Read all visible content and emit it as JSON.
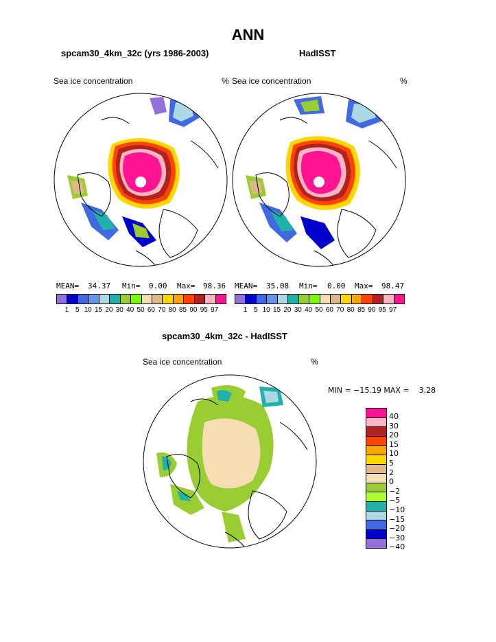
{
  "title": "ANN",
  "panels": [
    {
      "title": "spcam30_4km_32c (yrs 1986-2003)",
      "variable": "Sea ice concentration",
      "units": "%",
      "mean_label": "MEAN=",
      "mean": "34.37",
      "min_label": "Min=",
      "min": "0.00",
      "max_label": "Max=",
      "max": "98.36"
    },
    {
      "title": "HadISST",
      "variable": "Sea ice concentration",
      "units": "%",
      "mean_label": "MEAN=",
      "mean": "35.08",
      "min_label": "Min=",
      "min": "0.00",
      "max_label": "Max=",
      "max": "98.47"
    }
  ],
  "abs_colorbar": {
    "ticks": [
      "1",
      "5",
      "10",
      "15",
      "20",
      "30",
      "40",
      "50",
      "60",
      "70",
      "80",
      "85",
      "90",
      "95",
      "97"
    ],
    "colors": [
      "#9370db",
      "#0000cd",
      "#4169e1",
      "#6495ed",
      "#add8e6",
      "#20b2aa",
      "#9acd32",
      "#7cfc00",
      "#f5deb3",
      "#deb887",
      "#ffd700",
      "#ffa500",
      "#ff4500",
      "#b22222",
      "#ffb6c1",
      "#ff1493"
    ]
  },
  "diff_panel": {
    "title": "spcam30_4km_32c - HadISST",
    "variable": "Sea ice concentration",
    "units": "%",
    "minmax_text": "MIN = −15.19 MAX =    3.28"
  },
  "diff_colorbar": {
    "labels": [
      "40",
      "30",
      "20",
      "15",
      "10",
      "5",
      "2",
      "0",
      "−2",
      "−5",
      "−10",
      "−15",
      "−20",
      "−30",
      "−40"
    ],
    "colors": [
      "#ff1493",
      "#ffb6c1",
      "#b22222",
      "#ff4500",
      "#ffa500",
      "#ffd700",
      "#deb887",
      "#f5deb3",
      "#9acd32",
      "#adff2f",
      "#20b2aa",
      "#add8e6",
      "#4169e1",
      "#0000cd",
      "#9370db"
    ]
  },
  "colors": {
    "ice_high": "#ff1493",
    "ice_pink": "#ffb6c1",
    "ice_red": "#b22222",
    "ice_orange": "#ff4500",
    "ice_amber": "#ffa500",
    "ice_yellow": "#ffd700",
    "ice_tan": "#deb887",
    "ice_wheat": "#f5deb3",
    "ice_green": "#9acd32",
    "ice_lime": "#adff2f",
    "ice_teal": "#20b2aa",
    "ice_lightblue": "#add8e6",
    "ice_blue": "#4169e1",
    "ice_navy": "#0000cd",
    "ice_purple": "#9370db"
  }
}
